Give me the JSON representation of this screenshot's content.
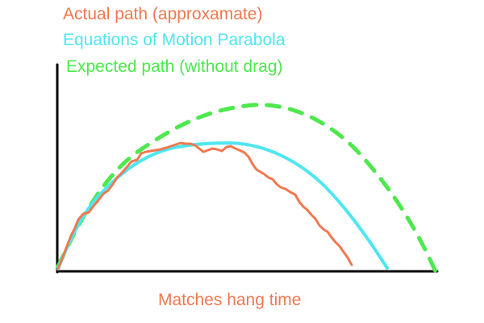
{
  "legend": {
    "actual": {
      "label": "Actual path (approxamate)",
      "color": "#f07850"
    },
    "equations": {
      "label": "Equations of Motion Parabola",
      "color": "#4fe6f0"
    },
    "expected": {
      "label": "Expected path (without drag)",
      "color": "#4de84d"
    }
  },
  "caption": {
    "text": "Matches hang time",
    "color": "#f07850"
  },
  "axes_color": "#000000"
}
